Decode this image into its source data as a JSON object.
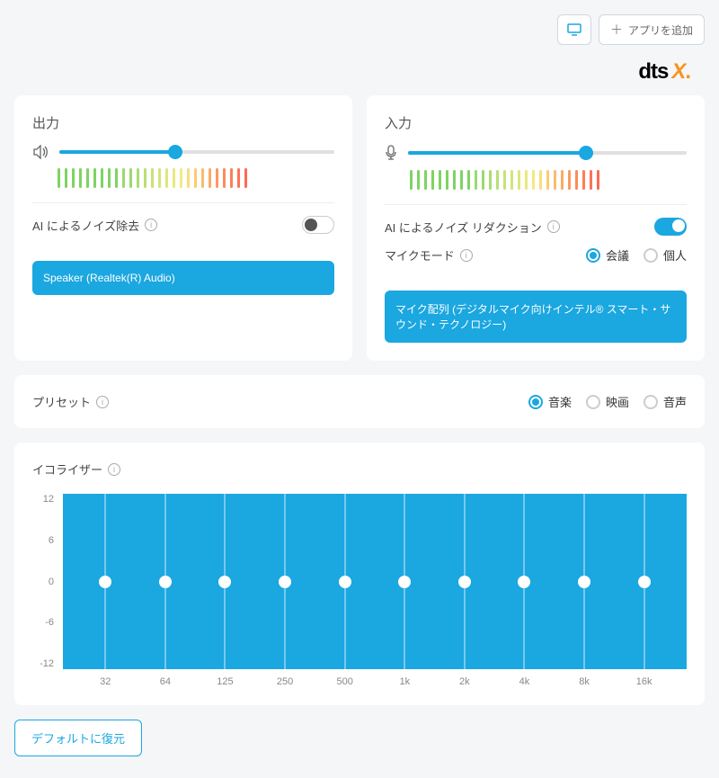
{
  "colors": {
    "accent": "#1ba7e0",
    "bg": "#f5f6f8",
    "card": "#ffffff"
  },
  "topbar": {
    "add_app_label": "アプリを追加"
  },
  "logo": {
    "text": "dts",
    "suffix": "X"
  },
  "output": {
    "title": "出力",
    "slider_percent": 42,
    "level_bars": [
      "#7dd462",
      "#7dd462",
      "#7dd462",
      "#7dd462",
      "#7dd462",
      "#7dd462",
      "#7dd462",
      "#7dd462",
      "#7dd462",
      "#9ad96f",
      "#9ad96f",
      "#a9dc73",
      "#b9df76",
      "#c6e278",
      "#d2e57a",
      "#dde77c",
      "#e8e97e",
      "#f2ea80",
      "#f7dd7b",
      "#f9cc74",
      "#fabb6d",
      "#fbaa66",
      "#fc9960",
      "#fc8b5b",
      "#fd7e57",
      "#fd7254",
      "#fd6a52"
    ],
    "noise_label": "AI によるノイズ除去",
    "noise_on": false,
    "device_label": "Speaker (Realtek(R) Audio)"
  },
  "input": {
    "title": "入力",
    "slider_percent": 64,
    "level_bars": [
      "#7dd462",
      "#7dd462",
      "#7dd462",
      "#7dd462",
      "#7dd462",
      "#7dd462",
      "#7dd462",
      "#7dd462",
      "#7dd462",
      "#9ad96f",
      "#9ad96f",
      "#a9dc73",
      "#b9df76",
      "#c6e278",
      "#d2e57a",
      "#dde77c",
      "#e8e97e",
      "#f2ea80",
      "#f7dd7b",
      "#f9cc74",
      "#fabb6d",
      "#fbaa66",
      "#fc9960",
      "#fc8b5b",
      "#fd7e57",
      "#fd7254",
      "#fd6a52"
    ],
    "noise_label": "AI によるノイズ リダクション",
    "noise_on": true,
    "mic_mode_label": "マイクモード",
    "mic_modes": [
      {
        "label": "会議",
        "checked": true
      },
      {
        "label": "個人",
        "checked": false
      }
    ],
    "device_label": "マイク配列 (デジタルマイク向けインテル® スマート・サウンド・テクノロジー)"
  },
  "preset": {
    "title": "プリセット",
    "options": [
      {
        "label": "音楽",
        "checked": true
      },
      {
        "label": "映画",
        "checked": false
      },
      {
        "label": "音声",
        "checked": false
      }
    ]
  },
  "eq": {
    "title": "イコライザー",
    "y_ticks": [
      "12",
      "6",
      "0",
      "-6",
      "-12"
    ],
    "bands": [
      {
        "freq": "32",
        "value": 0
      },
      {
        "freq": "64",
        "value": 0
      },
      {
        "freq": "125",
        "value": 0
      },
      {
        "freq": "250",
        "value": 0
      },
      {
        "freq": "500",
        "value": 0
      },
      {
        "freq": "1k",
        "value": 0
      },
      {
        "freq": "2k",
        "value": 0
      },
      {
        "freq": "4k",
        "value": 0
      },
      {
        "freq": "8k",
        "value": 0
      },
      {
        "freq": "16k",
        "value": 0
      }
    ],
    "y_range": [
      -12,
      12
    ],
    "graph_bg": "#1ba7e0"
  },
  "restore_label": "デフォルトに復元"
}
